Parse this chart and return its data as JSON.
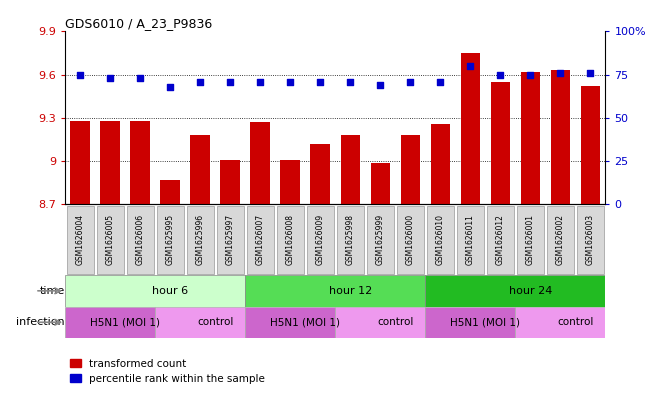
{
  "title": "GDS6010 / A_23_P9836",
  "samples": [
    "GSM1626004",
    "GSM1626005",
    "GSM1626006",
    "GSM1625995",
    "GSM1625996",
    "GSM1625997",
    "GSM1626007",
    "GSM1626008",
    "GSM1626009",
    "GSM1625998",
    "GSM1625999",
    "GSM1626000",
    "GSM1626010",
    "GSM1626011",
    "GSM1626012",
    "GSM1626001",
    "GSM1626002",
    "GSM1626003"
  ],
  "bar_values": [
    9.28,
    9.28,
    9.28,
    8.87,
    9.18,
    9.01,
    9.27,
    9.01,
    9.12,
    9.18,
    8.99,
    9.18,
    9.26,
    9.75,
    9.55,
    9.62,
    9.63,
    9.52
  ],
  "dot_values": [
    75,
    73,
    73,
    68,
    71,
    71,
    71,
    71,
    71,
    71,
    69,
    71,
    71,
    80,
    75,
    75,
    76,
    76
  ],
  "bar_color": "#cc0000",
  "dot_color": "#0000cc",
  "ylim_left": [
    8.7,
    9.9
  ],
  "ylim_right": [
    0,
    100
  ],
  "yticks_left": [
    8.7,
    9.0,
    9.3,
    9.6,
    9.9
  ],
  "ytick_labels_left": [
    "8.7",
    "9",
    "9.3",
    "9.6",
    "9.9"
  ],
  "yticks_right": [
    0,
    25,
    50,
    75,
    100
  ],
  "ytick_labels_right": [
    "0",
    "25",
    "50",
    "75",
    "100%"
  ],
  "grid_values": [
    9.0,
    9.3,
    9.6
  ],
  "time_groups": [
    {
      "label": "hour 6",
      "start": 0,
      "end": 6,
      "color": "#ccffcc"
    },
    {
      "label": "hour 12",
      "start": 6,
      "end": 12,
      "color": "#55dd55"
    },
    {
      "label": "hour 24",
      "start": 12,
      "end": 18,
      "color": "#22bb22"
    }
  ],
  "infection_groups": [
    {
      "label": "H5N1 (MOI 1)",
      "start": 0,
      "end": 3,
      "color": "#cc66cc"
    },
    {
      "label": "control",
      "start": 3,
      "end": 6,
      "color": "#ee99ee"
    },
    {
      "label": "H5N1 (MOI 1)",
      "start": 6,
      "end": 9,
      "color": "#cc66cc"
    },
    {
      "label": "control",
      "start": 9,
      "end": 12,
      "color": "#ee99ee"
    },
    {
      "label": "H5N1 (MOI 1)",
      "start": 12,
      "end": 15,
      "color": "#cc66cc"
    },
    {
      "label": "control",
      "start": 15,
      "end": 18,
      "color": "#ee99ee"
    }
  ],
  "time_label": "time",
  "infection_label": "infection",
  "bar_width": 0.65,
  "legend_red_label": "transformed count",
  "legend_blue_label": "percentile rank within the sample"
}
